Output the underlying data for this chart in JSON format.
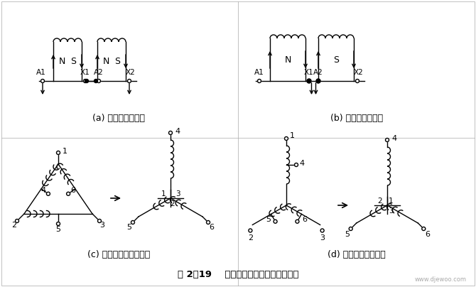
{
  "title": "图 2－19    双速电动机改变极对数的原理",
  "label_a": "(a) 四极绕组展开图",
  "label_b": "(b) 二极绕组展开图",
  "label_c": "(c) 三角形－双星形转换",
  "label_d": "(d) 星形－双星形转换",
  "watermark": "www.djewoo.com",
  "bg_color": "#ffffff",
  "line_color": "#000000",
  "fontsize_label": 9,
  "fontsize_title": 9.5
}
